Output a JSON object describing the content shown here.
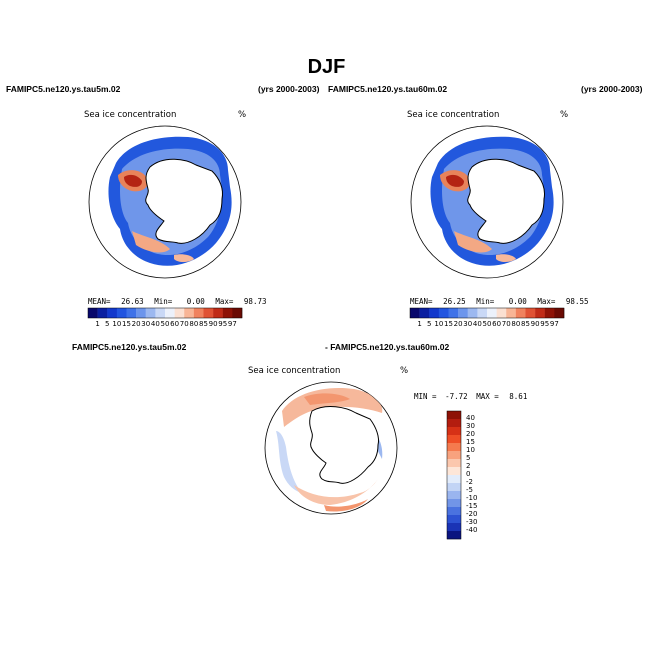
{
  "figure": {
    "title": "DJF",
    "colors": {
      "background": "#ffffff",
      "land": "#ffffff",
      "coast": "#000000"
    }
  },
  "panels": [
    {
      "id": "left",
      "case": "FAMIPC5.ne120.ys.tau5m.02",
      "years": "(yrs 2000-2003)",
      "variable": "Sea ice concentration",
      "units": "%",
      "mean_label": "MEAN=",
      "mean": "26.63",
      "min_label": "Min=",
      "min": "0.00",
      "max_label": "Max=",
      "max": "98.73"
    },
    {
      "id": "right",
      "case": "FAMIPC5.ne120.ys.tau60m.02",
      "years": "(yrs 2000-2003)",
      "variable": "Sea ice concentration",
      "units": "%",
      "mean_label": "MEAN=",
      "mean": "26.25",
      "min_label": "Min=",
      "min": "0.00",
      "max_label": "Max=",
      "max": "98.55"
    }
  ],
  "diff_panel": {
    "case_a": "FAMIPC5.ne120.ys.tau5m.02",
    "case_b": "- FAMIPC5.ne120.ys.tau60m.02",
    "variable": "Sea ice concentration",
    "units": "%",
    "min_label": "MIN =",
    "min": "-7.72",
    "max_label": "MAX =",
    "max": "8.61"
  },
  "colorbar_abs": {
    "labels": [
      "1",
      "5",
      "10",
      "15",
      "20",
      "30",
      "40",
      "50",
      "60",
      "70",
      "80",
      "85",
      "90",
      "95",
      "97"
    ],
    "colors": [
      "#08086b",
      "#0a1fa0",
      "#1238cc",
      "#2255e0",
      "#3f72e8",
      "#6c95ec",
      "#9cb8f0",
      "#c9d8f6",
      "#ecf1fb",
      "#fbe0d2",
      "#f8b596",
      "#f0825e",
      "#e05234",
      "#c02b17",
      "#8e1206",
      "#6a0a03"
    ]
  },
  "colorbar_diff": {
    "labels": [
      "40",
      "30",
      "20",
      "15",
      "10",
      "5",
      "2",
      "0",
      "-2",
      "-5",
      "-10",
      "-15",
      "-20",
      "-30",
      "-40"
    ],
    "colors": [
      "#8e1206",
      "#b31d0f",
      "#d63116",
      "#ee4e26",
      "#f57a4e",
      "#f8a27e",
      "#fbc7ad",
      "#fde6d8",
      "#e2ecfb",
      "#c2d4f5",
      "#9ab5ef",
      "#7295e7",
      "#4a72df",
      "#2d52d2",
      "#1a33b5",
      "#0a1480"
    ]
  }
}
